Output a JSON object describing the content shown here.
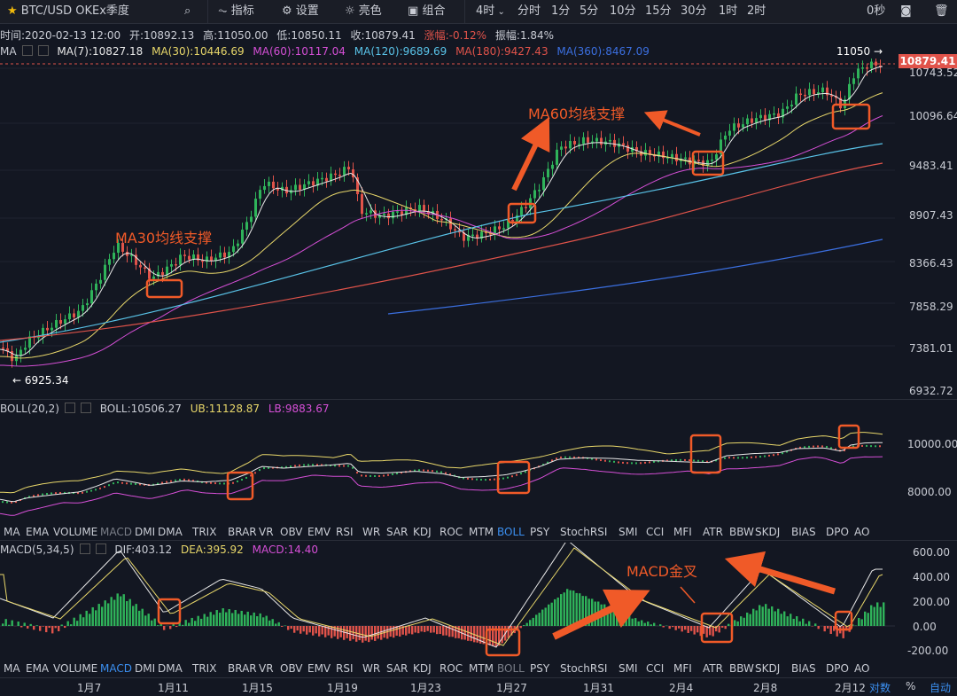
{
  "toolbar": {
    "symbol": "BTC/USD OKEx季度",
    "indicator_label": "指标",
    "settings_label": "设置",
    "theme_label": "亮色",
    "combo_label": "组合",
    "timeframe_selected": "4时",
    "timeframes": [
      "分时",
      "1分",
      "5分",
      "10分",
      "15分",
      "30分",
      "1时",
      "2时"
    ],
    "countdown": "0秒",
    "icons": [
      "star-icon",
      "search-icon",
      "indicator-icon",
      "gear-icon",
      "sun-icon",
      "combo-icon",
      "camera-icon",
      "trash-icon"
    ]
  },
  "ohlc": {
    "time": "时间:2020-02-13 12:00",
    "open": "开:10892.13",
    "high": "高:11050.00",
    "low": "低:10850.11",
    "close": "收:10879.41",
    "change": "涨幅:-0.12%",
    "amplitude": "振幅:1.84%"
  },
  "ma": {
    "label": "MA",
    "ma7": "MA(7):10827.18",
    "ma30": "MA(30):10446.69",
    "ma60": "MA(60):10117.04",
    "ma120": "MA(120):9689.69",
    "ma180": "MA(180):9427.43",
    "ma360": "MA(360):8467.09"
  },
  "main_axis": [
    "10743.52",
    "10096.64",
    "9483.41",
    "8907.43",
    "8366.43",
    "7858.29",
    "7381.01",
    "6932.72"
  ],
  "price_tag": "10879.41",
  "high_marker": "11050 →",
  "low_marker": "← 6925.34",
  "boll": {
    "label": "BOLL(20,2)",
    "value": "BOLL:10506.27",
    "ub": "UB:11128.87",
    "lb": "LB:9883.67",
    "axis": [
      "10000.00",
      "8000.00"
    ]
  },
  "indicator_tabs": [
    "MA",
    "EMA",
    "VOLUME",
    "MACD",
    "DMI",
    "DMA",
    "TRIX",
    "BRAR",
    "VR",
    "OBV",
    "EMV",
    "RSI",
    "WR",
    "SAR",
    "KDJ",
    "ROC",
    "MTM",
    "BOLL",
    "PSY",
    "StochRSI",
    "SMI",
    "CCI",
    "MFI",
    "ATR",
    "BBW",
    "SKDJ",
    "BIAS",
    "DPO",
    "AO"
  ],
  "active_tab_upper": "BOLL",
  "active_tab_lower": "MACD",
  "macd": {
    "label": "MACD(5,34,5)",
    "dif": "DIF:403.12",
    "dea": "DEA:395.92",
    "macd": "MACD:14.40",
    "axis": [
      "600.00",
      "400.00",
      "200.00",
      "0.00",
      "-200.00"
    ]
  },
  "dates": [
    "1月7",
    "1月11",
    "1月15",
    "1月19",
    "1月23",
    "1月27",
    "1月31",
    "2月4",
    "2月8",
    "2月12"
  ],
  "bottom_right": {
    "log": "对数",
    "pct": "%",
    "auto": "自动"
  },
  "annotations": {
    "ma30": "MA30均线支撑",
    "ma60": "MA60均线支撑",
    "macd": "MACD金叉"
  },
  "colors": {
    "ma7": "#e8e8e8",
    "ma30": "#e8d76a",
    "ma60": "#d54fd6",
    "ma120": "#59c3e8",
    "ma180": "#e0534a",
    "ma360": "#3b6fe0",
    "up": "#2fb35a",
    "down": "#e0534a",
    "annotation": "#f05a28",
    "active": "#3b8ff0"
  }
}
